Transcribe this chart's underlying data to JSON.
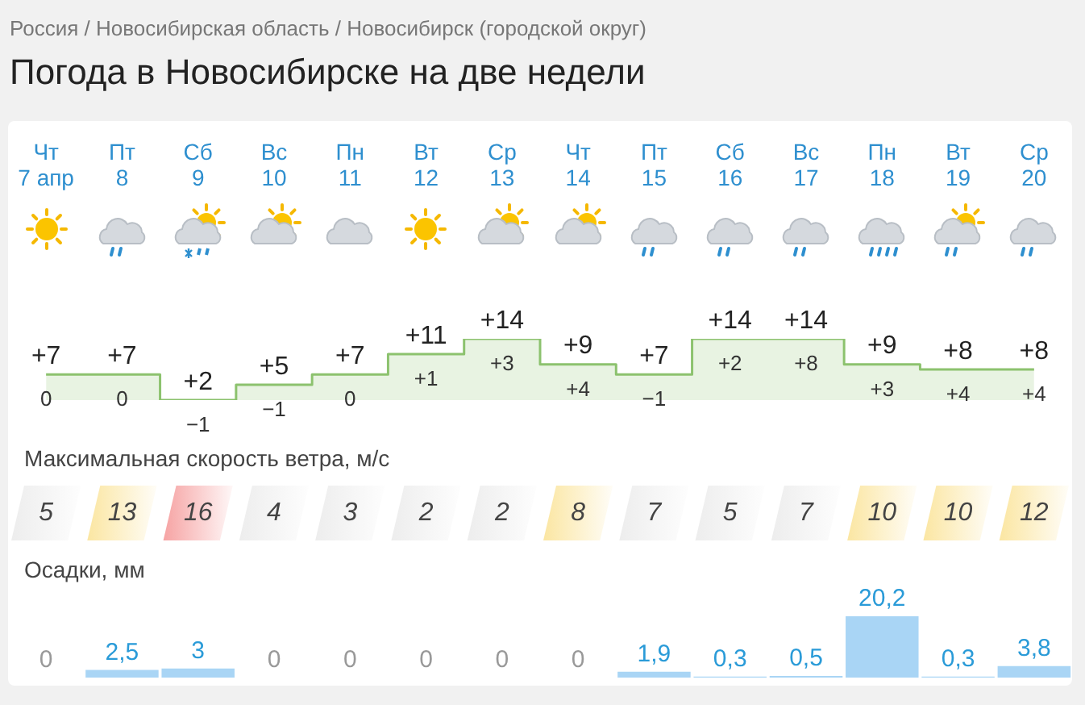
{
  "chart_data": [
    {
      "type": "step",
      "title": "Погода в Новосибирске на две недели",
      "subtitle": "Россия / Новосибирская область / Новосибирск (городской округ)",
      "categories": [
        "Чт\n7 апр",
        "Пт\n8",
        "Сб\n9",
        "Вс\n10",
        "Пн\n11",
        "Вт\n12",
        "Ср\n13",
        "Чт\n14",
        "Пт\n15",
        "Сб\n16",
        "Вс\n17",
        "Пн\n18",
        "Вт\n19",
        "Ср\n20"
      ],
      "series": [
        {
          "color": "#8cc26e",
          "values": [
            7,
            7,
            2,
            5,
            7,
            11,
            14,
            9,
            7,
            14,
            14,
            9,
            8,
            8
          ],
          "value_labels": [
            "+7",
            "+7",
            "+2",
            "+5",
            "+7",
            "+11",
            "+14",
            "+9",
            "+7",
            "+14",
            "+14",
            "+9",
            "+8",
            "+8"
          ]
        }
      ],
      "annotations": [
        "0",
        "0",
        "−1",
        "−1",
        "0",
        "+1",
        "+3",
        "+4",
        "−1",
        "+2",
        "+8",
        "+3",
        "+4",
        "+4"
      ]
    },
    {
      "type": "other",
      "title": "Максимальная скорость ветра, м/с",
      "annotations": [
        "5",
        "13",
        "16",
        "4",
        "3",
        "2",
        "2",
        "8",
        "7",
        "5",
        "7",
        "10",
        "10",
        "12"
      ],
      "colors": [
        "#ededed",
        "#fbe6a2",
        "#f6a3a3",
        "#ededed",
        "#ededed",
        "#ededed",
        "#ededed",
        "#fbe6a2",
        "#ededed",
        "#ededed",
        "#ededed",
        "#fbe6a2",
        "#fbe6a2",
        "#fbe6a2"
      ]
    },
    {
      "type": "bar",
      "title": "Осадки, мм",
      "tick_labels": false,
      "color": "#a9d5f5",
      "categories": [
        null,
        null,
        null,
        null,
        null,
        null,
        null,
        null,
        null,
        null,
        null,
        null,
        null,
        null
      ],
      "values": [
        0,
        2.5,
        3,
        0,
        0,
        0,
        0,
        0,
        1.9,
        0.3,
        0.5,
        20.2,
        0.3,
        3.8
      ],
      "value_labels": [
        "0",
        "2,5",
        "3",
        "0",
        "0",
        "0",
        "0",
        "0",
        "1,9",
        "0,3",
        "0,5",
        "20,2",
        "0,3",
        "3,8"
      ]
    }
  ]
}
